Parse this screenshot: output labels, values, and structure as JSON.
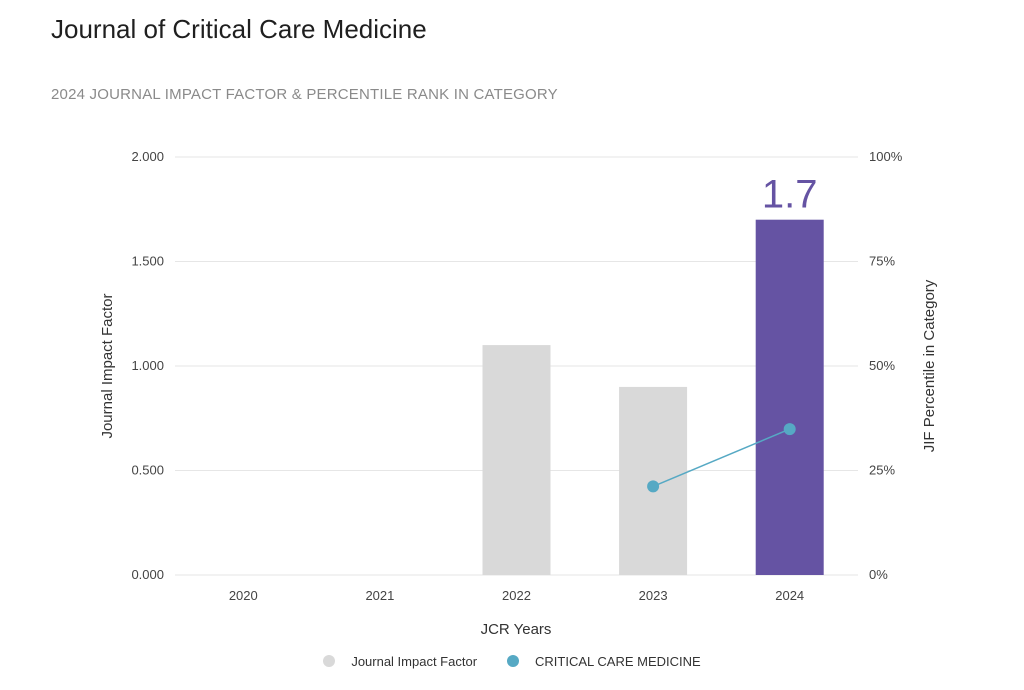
{
  "header": {
    "title": "Journal of Critical Care Medicine",
    "subtitle": "2024 JOURNAL IMPACT FACTOR & PERCENTILE RANK IN CATEGORY"
  },
  "colors": {
    "bar_default": "#d9d9d9",
    "bar_highlight": "#6553a3",
    "line_series": "#56a9c4",
    "highlight_label": "#6553a3",
    "gridline": "#e6e6e6"
  },
  "chart_data": {
    "type": "bar",
    "categories": [
      "2020",
      "2021",
      "2022",
      "2023",
      "2024"
    ],
    "xlabel": "JCR Years",
    "ylabel": "Journal Impact Factor",
    "y2label": "JIF Percentile in Category",
    "ylim": [
      0,
      2
    ],
    "y2lim": [
      0,
      100
    ],
    "yticks": [
      "0.000",
      "0.500",
      "1.000",
      "1.500",
      "2.000"
    ],
    "y2ticks": [
      "0%",
      "25%",
      "50%",
      "75%",
      "100%"
    ],
    "grid": true,
    "legend_position": "bottom-center",
    "highlight_category": "2024",
    "highlight_label": "1.7",
    "series": [
      {
        "name": "Journal Impact Factor",
        "type": "bar",
        "axis": "left",
        "values": [
          null,
          null,
          1.1,
          0.9,
          1.7
        ]
      },
      {
        "name": "CRITICAL CARE MEDICINE",
        "type": "line",
        "axis": "right",
        "values": [
          null,
          null,
          null,
          21.2,
          34.9
        ]
      }
    ]
  }
}
